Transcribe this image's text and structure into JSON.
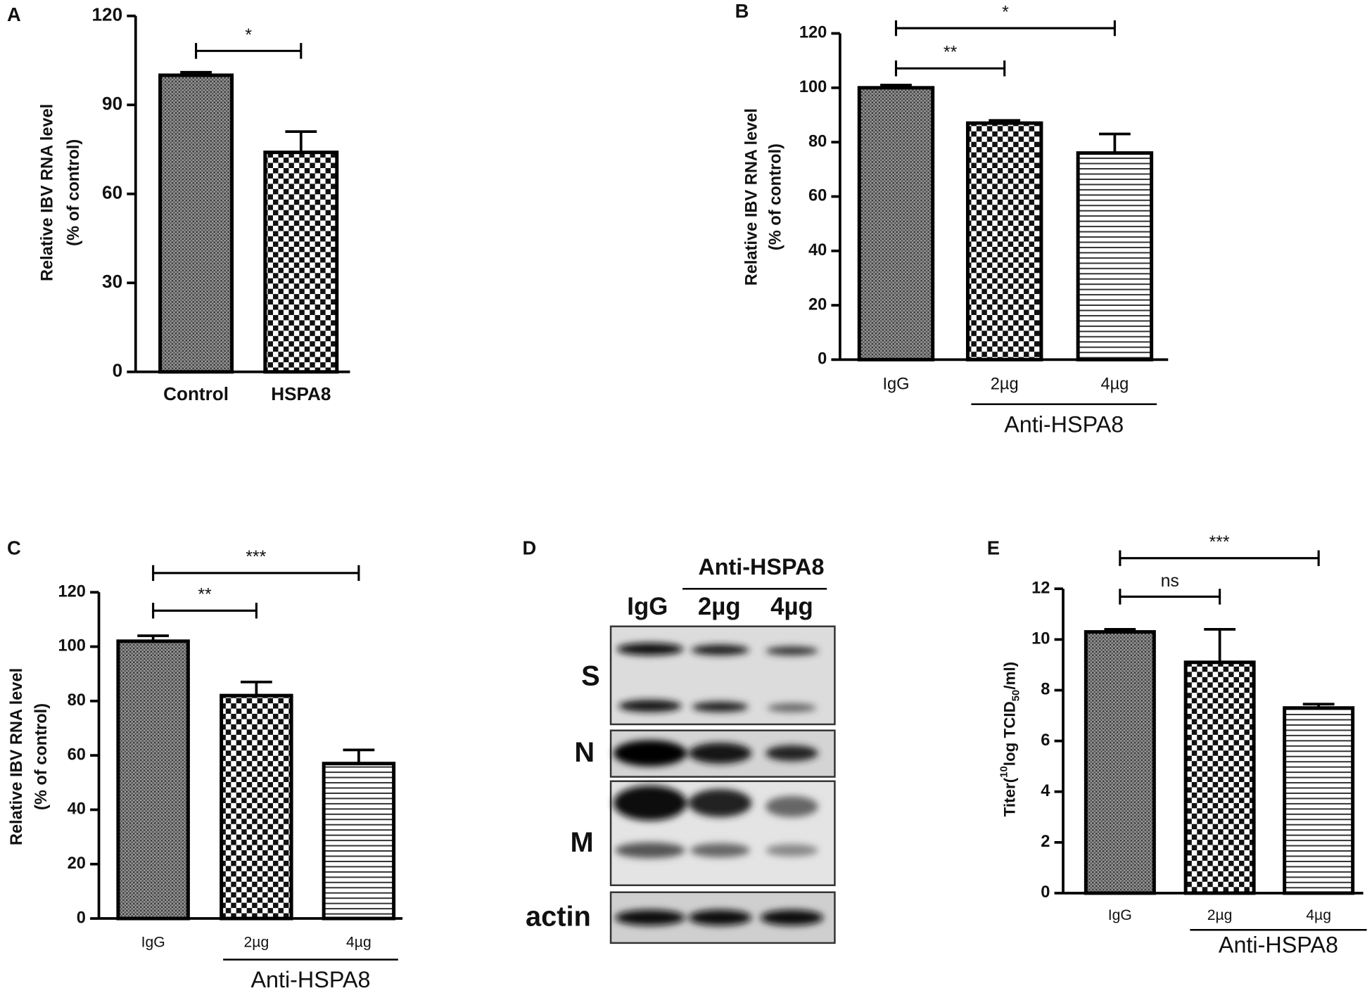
{
  "chart_data": [
    {
      "type": "bar",
      "panel": "A",
      "ylabel": [
        "Relative IBV RNA level",
        "(% of control)"
      ],
      "categories": [
        "Control",
        "HSPA8"
      ],
      "values": [
        100,
        74
      ],
      "errors": [
        1,
        7
      ],
      "patterns": [
        "crosshatch",
        "checker"
      ],
      "color": "#000000",
      "ylim": [
        0,
        120
      ],
      "yticks": [
        0,
        30,
        60,
        90,
        120
      ],
      "significance": [
        {
          "label": "*",
          "between": [
            "Control",
            "HSPA8"
          ]
        }
      ]
    },
    {
      "type": "bar",
      "panel": "B",
      "ylabel": [
        "Relative IBV RNA level",
        "(% of control)"
      ],
      "categories": [
        "IgG",
        "2µg",
        "4µg"
      ],
      "values": [
        100,
        87,
        76
      ],
      "errors": [
        1,
        1,
        7
      ],
      "patterns": [
        "crosshatch",
        "checker",
        "hlines"
      ],
      "color": "#000000",
      "ylim": [
        0,
        120
      ],
      "yticks": [
        0,
        20,
        40,
        60,
        80,
        100,
        120
      ],
      "significance": [
        {
          "label": "**",
          "between": [
            "IgG",
            "2µg"
          ]
        },
        {
          "label": "*",
          "between": [
            "IgG",
            "4µg"
          ]
        }
      ],
      "group": {
        "label": "Anti-HSPA8",
        "categories": [
          "2µg",
          "4µg"
        ]
      }
    },
    {
      "type": "bar",
      "panel": "C",
      "ylabel": [
        "Relative IBV RNA level",
        "(% of control)"
      ],
      "categories": [
        "IgG",
        "2µg",
        "4µg"
      ],
      "values": [
        102,
        82,
        57
      ],
      "errors": [
        2,
        5,
        5
      ],
      "patterns": [
        "crosshatch",
        "checker",
        "hlines"
      ],
      "color": "#000000",
      "ylim": [
        0,
        120
      ],
      "yticks": [
        0,
        20,
        40,
        60,
        80,
        100,
        120
      ],
      "significance": [
        {
          "label": "**",
          "between": [
            "IgG",
            "2µg"
          ]
        },
        {
          "label": "***",
          "between": [
            "IgG",
            "4µg"
          ]
        }
      ],
      "group": {
        "label": "Anti-HSPA8",
        "categories": [
          "2µg",
          "4µg"
        ]
      }
    },
    {
      "type": "bar",
      "panel": "E",
      "ylabel": {
        "prefix": "Titer(",
        "sup": "10",
        "main": "log TCID",
        "sub": "50",
        "suffix": "/ml)"
      },
      "categories": [
        "IgG",
        "2µg",
        "4µg"
      ],
      "values": [
        10.3,
        9.1,
        7.3
      ],
      "errors": [
        0.1,
        1.3,
        0.15
      ],
      "patterns": [
        "crosshatch",
        "checker",
        "hlines"
      ],
      "color": "#000000",
      "ylim": [
        0,
        12
      ],
      "yticks": [
        0,
        2,
        4,
        6,
        8,
        10,
        12
      ],
      "significance": [
        {
          "label": "ns",
          "between": [
            "IgG",
            "2µg"
          ]
        },
        {
          "label": "***",
          "between": [
            "IgG",
            "4µg"
          ]
        }
      ],
      "group": {
        "label": "Anti-HSPA8",
        "categories": [
          "2µg",
          "4µg"
        ]
      }
    }
  ],
  "blot": {
    "panel": "D",
    "group": "Anti-HSPA8",
    "lanes": [
      "IgG",
      "2µg",
      "4µg"
    ],
    "rows": [
      "S",
      "N",
      "M",
      "actin"
    ]
  }
}
